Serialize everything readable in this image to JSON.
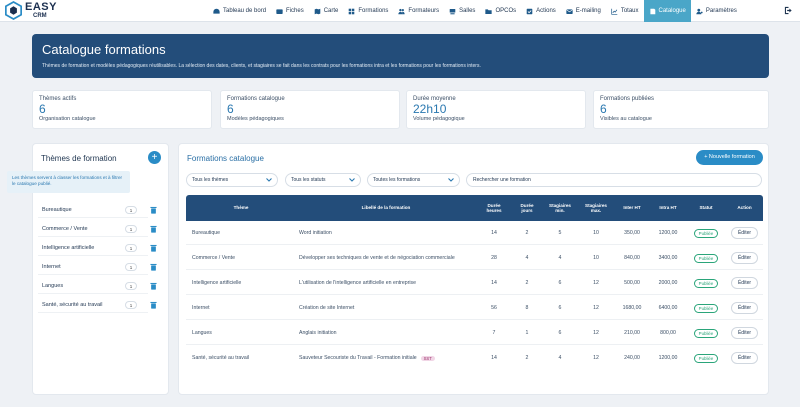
{
  "brand": {
    "name": "EASY",
    "sub": "CRM"
  },
  "nav": [
    {
      "label": "Tableau de bord",
      "icon": "dashboard-icon"
    },
    {
      "label": "Fiches",
      "icon": "id-card-icon"
    },
    {
      "label": "Carte",
      "icon": "map-icon"
    },
    {
      "label": "Formations",
      "icon": "grid-icon"
    },
    {
      "label": "Formateurs",
      "icon": "users-icon"
    },
    {
      "label": "Salles",
      "icon": "room-icon"
    },
    {
      "label": "OPCOs",
      "icon": "folder-icon"
    },
    {
      "label": "Actions",
      "icon": "check-square-icon"
    },
    {
      "label": "E-mailing",
      "icon": "envelope-icon"
    },
    {
      "label": "Totaux",
      "icon": "line-chart-icon"
    },
    {
      "label": "Catalogue",
      "icon": "book-icon",
      "active": true
    },
    {
      "label": "Paramètres",
      "icon": "user-gear-icon"
    }
  ],
  "banner": {
    "title": "Catalogue formations",
    "subtitle": "Thèmes de formation et modèles pédagogiques réutilisables. La sélection des dates, clients, et stagiaires se fait dans les contrats pour les formations intra et les formations pour les formations inters."
  },
  "kpis": [
    {
      "label": "Thèmes actifs",
      "value": "6",
      "sub": "Organisation catalogue"
    },
    {
      "label": "Formations catalogue",
      "value": "6",
      "sub": "Modèles pédagogiques"
    },
    {
      "label": "Durée moyenne",
      "value": "22h10",
      "sub": "Volume pédagogique"
    },
    {
      "label": "Formations publiées",
      "value": "6",
      "sub": "Visibles au catalogue"
    }
  ],
  "themes_panel": {
    "title": "Thèmes de formation",
    "add_label": "+",
    "hint": "Les thèmes servent à classer les formations et à filtrer le catalogue publié.",
    "items": [
      {
        "name": "Bureautique",
        "count": "1"
      },
      {
        "name": "Commerce / Vente",
        "count": "1"
      },
      {
        "name": "Intelligence artificielle",
        "count": "1"
      },
      {
        "name": "Internet",
        "count": "1"
      },
      {
        "name": "Langues",
        "count": "1"
      },
      {
        "name": "Santé, sécurité au travail",
        "count": "1"
      }
    ]
  },
  "catalogue": {
    "title": "Formations catalogue",
    "new_label": "+ Nouvelle formation",
    "filters": {
      "themes": "Tous les thèmes",
      "status": "Tous les statuts",
      "formations": "Toutes les formations"
    },
    "search_placeholder": "Rechercher une formation",
    "columns": [
      "Thème",
      "Libellé de la formation",
      "Durée heures",
      "Durée jours",
      "Stagiaires min.",
      "Stagiaires max.",
      "Inter HT",
      "Intra HT",
      "Statut",
      "Action"
    ],
    "rows": [
      {
        "theme": "Bureautique",
        "label": "Word initiation",
        "tag": "",
        "hours": "14",
        "days": "2",
        "min": "5",
        "max": "10",
        "inter": "350,00",
        "intra": "1200,00",
        "status": "Publiée",
        "action": "Éditer"
      },
      {
        "theme": "Commerce / Vente",
        "label": "Développer ses techniques de vente et de négociation commerciale",
        "tag": "",
        "hours": "28",
        "days": "4",
        "min": "4",
        "max": "10",
        "inter": "840,00",
        "intra": "3400,00",
        "status": "Publiée",
        "action": "Éditer"
      },
      {
        "theme": "Intelligence artificielle",
        "label": "L'utilisation de l'intelligence artificielle en entreprise",
        "tag": "",
        "hours": "14",
        "days": "2",
        "min": "6",
        "max": "12",
        "inter": "500,00",
        "intra": "2000,00",
        "status": "Publiée",
        "action": "Éditer"
      },
      {
        "theme": "Internet",
        "label": "Création de site Internet",
        "tag": "",
        "hours": "56",
        "days": "8",
        "min": "6",
        "max": "12",
        "inter": "1680,00",
        "intra": "6400,00",
        "status": "Publiée",
        "action": "Éditer"
      },
      {
        "theme": "Langues",
        "label": "Anglais initiation",
        "tag": "",
        "hours": "7",
        "days": "1",
        "min": "6",
        "max": "12",
        "inter": "210,00",
        "intra": "800,00",
        "status": "Publiée",
        "action": "Éditer"
      },
      {
        "theme": "Santé, sécurité au travail",
        "label": "Sauveteur Secouriste du Travail - Formation initiale",
        "tag": "SST",
        "hours": "14",
        "days": "2",
        "min": "4",
        "max": "12",
        "inter": "240,00",
        "intra": "1200,00",
        "status": "Publiée",
        "action": "Éditer"
      }
    ]
  },
  "colors": {
    "primary": "#234d7a",
    "accent": "#2a8cc6",
    "active_nav": "#4aa6c8",
    "success": "#2aa57a"
  }
}
